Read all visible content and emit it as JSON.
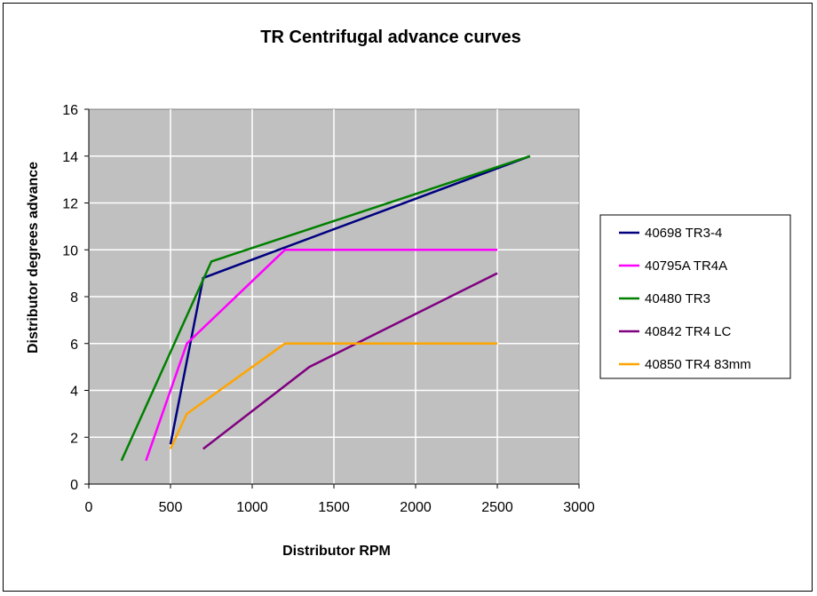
{
  "chart_data": {
    "type": "line",
    "title": "TR Centrifugal advance curves",
    "xlabel": "Distributor RPM",
    "ylabel": "Distributor degrees advance",
    "xlim": [
      0,
      3000
    ],
    "ylim": [
      0,
      16
    ],
    "xticks": [
      0,
      500,
      1000,
      1500,
      2000,
      2500,
      3000
    ],
    "yticks": [
      0,
      2,
      4,
      6,
      8,
      10,
      12,
      14,
      16
    ],
    "grid": true,
    "legend_position": "right",
    "plot_background": "#c0c0c0",
    "series": [
      {
        "name": "40698 TR3-4",
        "color": "#000080",
        "x": [
          500,
          700,
          2700
        ],
        "y": [
          1.7,
          8.8,
          14
        ]
      },
      {
        "name": "40795A TR4A",
        "color": "#ff00ff",
        "x": [
          350,
          600,
          1200,
          2500
        ],
        "y": [
          1,
          6,
          10,
          10
        ]
      },
      {
        "name": "40480 TR3",
        "color": "#008000",
        "x": [
          200,
          750,
          2700
        ],
        "y": [
          1,
          9.5,
          14
        ]
      },
      {
        "name": "40842 TR4 LC",
        "color": "#800080",
        "x": [
          700,
          1350,
          2500
        ],
        "y": [
          1.5,
          5,
          9
        ]
      },
      {
        "name": "40850 TR4 83mm",
        "color": "#ffa500",
        "x": [
          500,
          600,
          1200,
          2500
        ],
        "y": [
          1.5,
          3,
          6,
          6
        ]
      }
    ]
  }
}
